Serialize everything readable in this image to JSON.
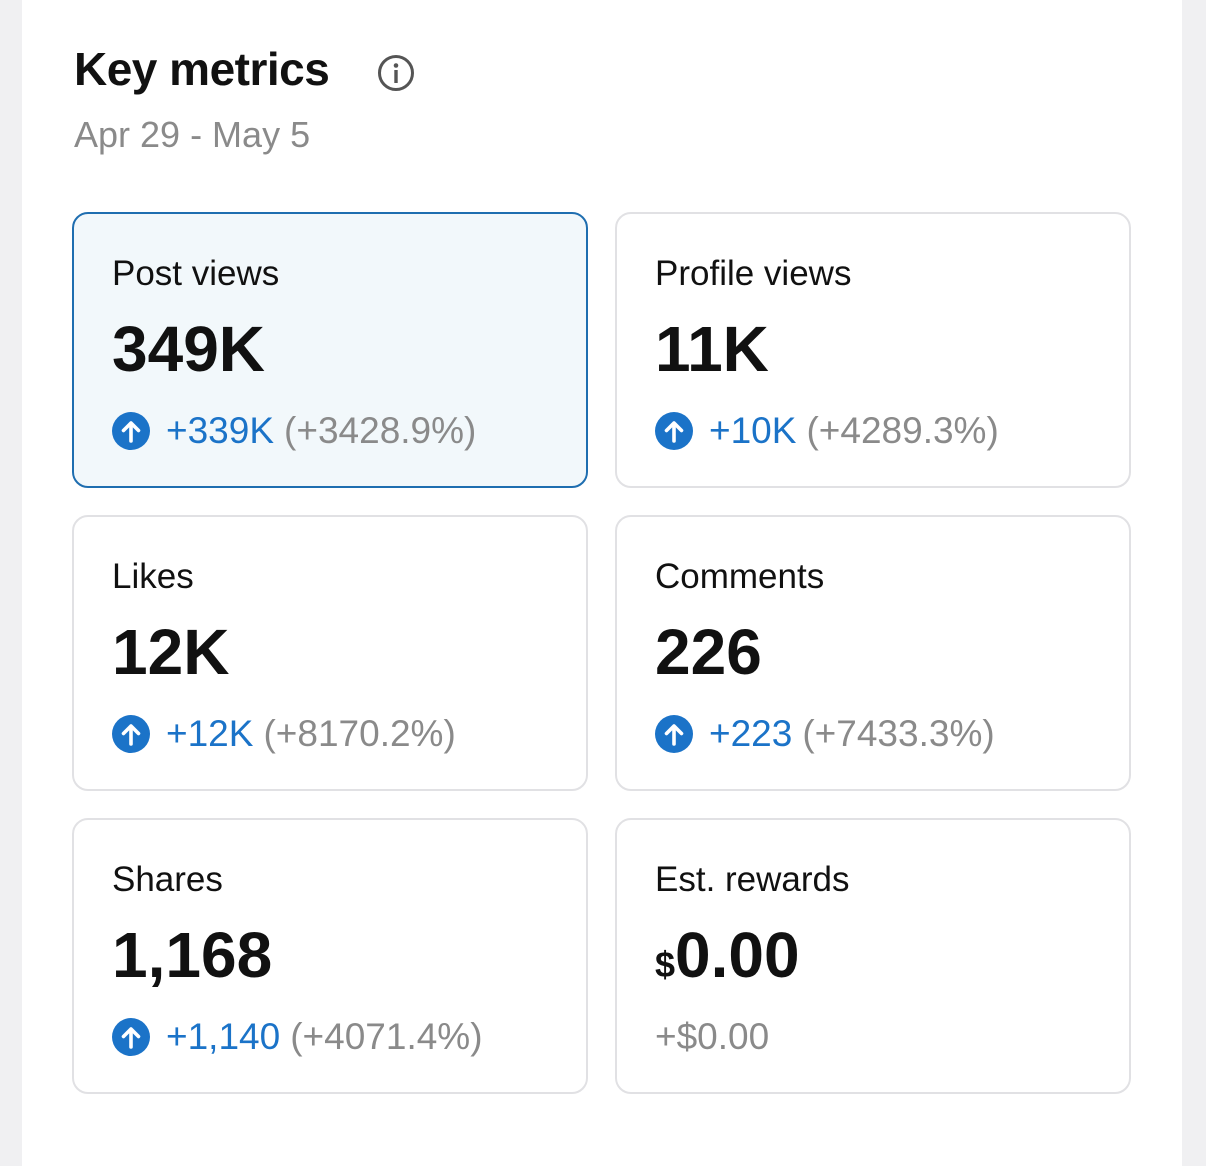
{
  "header": {
    "title": "Key metrics",
    "date": "Apr 29 - May 5"
  },
  "metrics": [
    {
      "label": "Post views",
      "value": "349K",
      "change": "+339K",
      "percent": "(+3428.9%)"
    },
    {
      "label": "Profile views",
      "value": "11K",
      "change": "+10K",
      "percent": "(+4289.3%)"
    },
    {
      "label": "Likes",
      "value": "12K",
      "change": "+12K",
      "percent": "(+8170.2%)"
    },
    {
      "label": "Comments",
      "value": "226",
      "change": "+223",
      "percent": "(+7433.3%)"
    },
    {
      "label": "Shares",
      "value": "1,168",
      "change": "+1,140",
      "percent": "(+4071.4%)"
    },
    {
      "label": "Est. rewards",
      "currency": "$",
      "value": "0.00",
      "change": "+$0.00"
    }
  ]
}
